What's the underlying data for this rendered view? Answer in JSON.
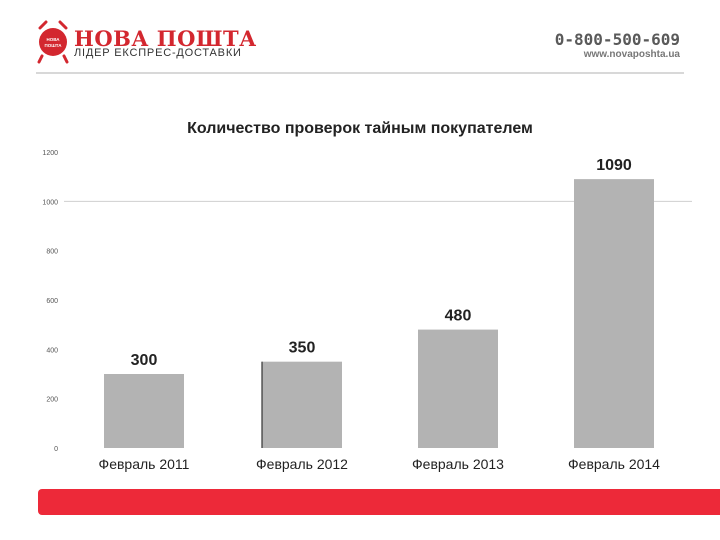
{
  "header": {
    "brand_name": "НОВА ПОШТА",
    "tagline": "ЛІДЕР ЕКСПРЕС-ДОСТАВКИ",
    "logo_text": "НОВА ПОШТА",
    "phone": "0-800-500-609",
    "website": "www.novaposhta.ua",
    "brand_color": "#d3272f"
  },
  "footer": {
    "accent_color": "#ed2939"
  },
  "chart_data": {
    "type": "bar",
    "title": "Количество проверок тайным покупателем",
    "categories": [
      "Февраль 2011",
      "Февраль 2012",
      "Февраль 2013",
      "Февраль 2014"
    ],
    "values": [
      300,
      350,
      480,
      1090
    ],
    "value_labels": [
      "300",
      "350",
      "480",
      "1090"
    ],
    "y_ticks": [
      0,
      200,
      400,
      600,
      800,
      1000,
      1200
    ],
    "ylim": [
      0,
      1200
    ],
    "bar_color": "#b3b3b3",
    "xlabel": "",
    "ylabel": ""
  }
}
